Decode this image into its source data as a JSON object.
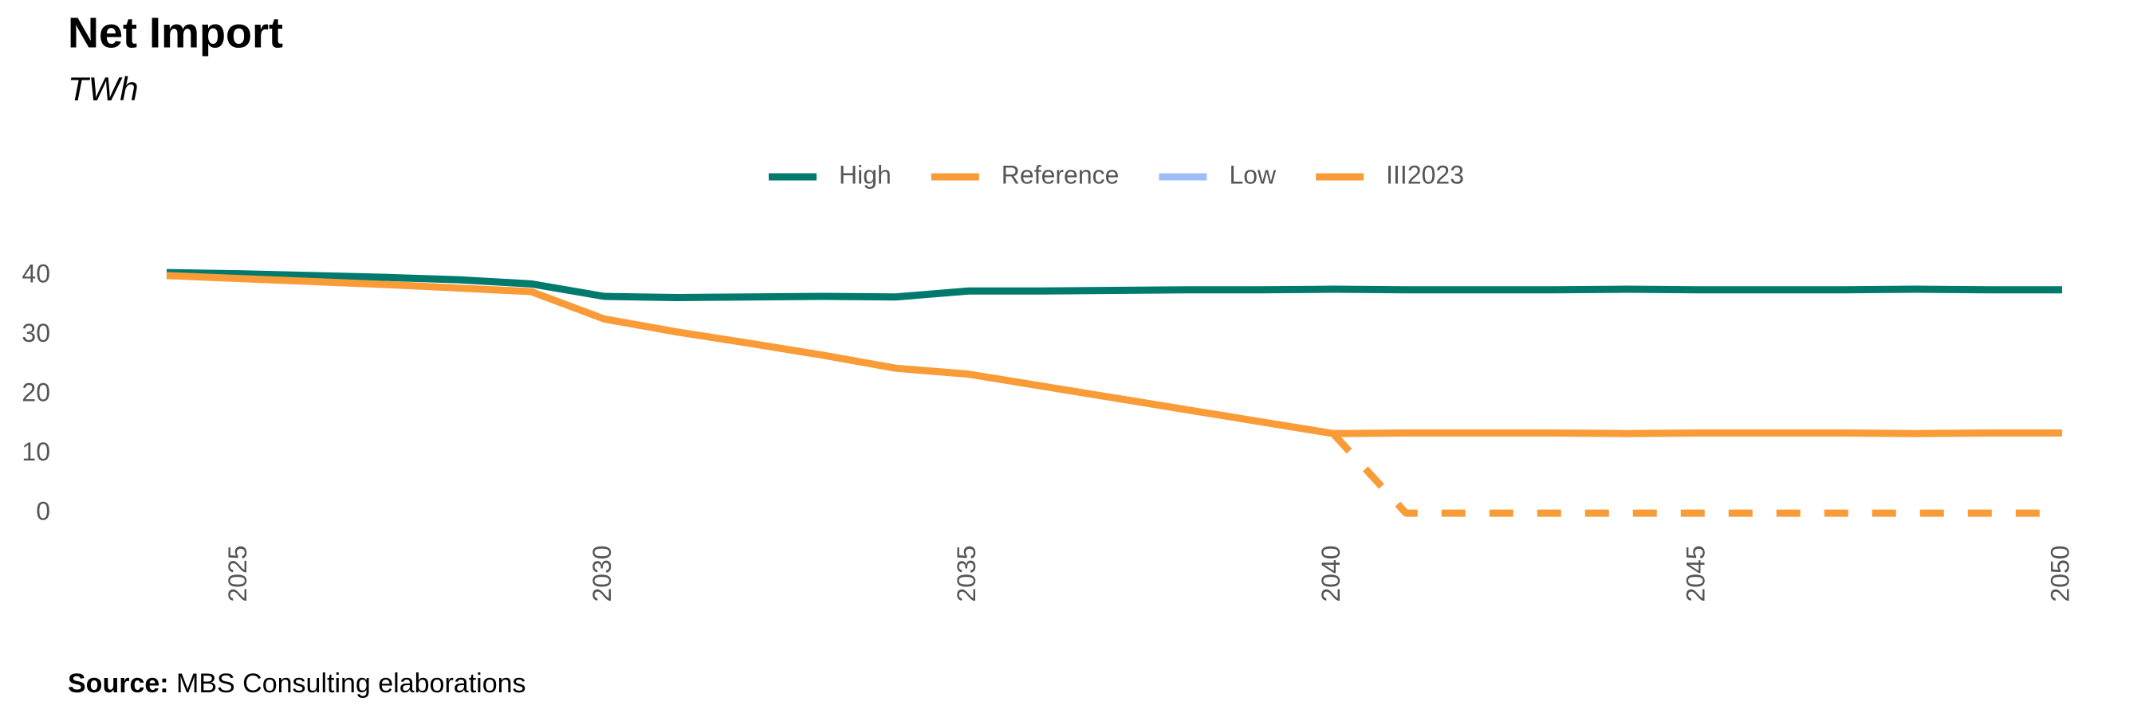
{
  "chart_data": {
    "type": "line",
    "title": "Net Import",
    "subtitle": "TWh",
    "source_label": "Source:",
    "source": "MBS Consulting elaborations",
    "x": [
      2024,
      2025,
      2026,
      2027,
      2028,
      2029,
      2030,
      2031,
      2032,
      2033,
      2034,
      2035,
      2036,
      2037,
      2038,
      2039,
      2040,
      2041,
      2042,
      2043,
      2044,
      2045,
      2046,
      2047,
      2048,
      2049,
      2050
    ],
    "xlim": [
      2024,
      2050
    ],
    "xticks": [
      2025,
      2030,
      2035,
      2040,
      2045,
      2050
    ],
    "ylim": [
      -2,
      42
    ],
    "yticks": [
      0,
      10,
      20,
      30,
      40
    ],
    "grid": false,
    "legend": "top",
    "series": [
      {
        "name": "High",
        "color": "#007a6c",
        "dashed": false,
        "values": [
          40.5,
          40.3,
          40.0,
          39.7,
          39.3,
          38.6,
          36.5,
          36.3,
          36.4,
          36.5,
          36.4,
          37.4,
          37.4,
          37.5,
          37.6,
          37.6,
          37.7,
          37.6,
          37.6,
          37.6,
          37.7,
          37.6,
          37.6,
          37.6,
          37.7,
          37.6,
          37.6
        ]
      },
      {
        "name": "Reference",
        "color": "#f99c38",
        "dashed": false,
        "values": [
          40.0,
          39.5,
          39.0,
          38.5,
          37.9,
          37.3,
          32.7,
          30.5,
          28.6,
          26.6,
          24.4,
          23.4,
          21.4,
          19.4,
          17.4,
          15.4,
          13.4,
          13.5,
          13.5,
          13.5,
          13.4,
          13.5,
          13.5,
          13.5,
          13.4,
          13.5,
          13.5
        ]
      },
      {
        "name": "Low",
        "color": "#9dbdf7",
        "dashed": false,
        "values": [
          null,
          null,
          null,
          null,
          null,
          null,
          null,
          null,
          null,
          null,
          null,
          null,
          null,
          null,
          null,
          null,
          null,
          null,
          null,
          null,
          null,
          null,
          null,
          null,
          null,
          null,
          null
        ]
      },
      {
        "name": "III2023",
        "color": "#f99c38",
        "dashed": true,
        "values": [
          null,
          null,
          null,
          null,
          null,
          null,
          null,
          null,
          null,
          null,
          null,
          null,
          null,
          null,
          null,
          null,
          13.4,
          0,
          0,
          0,
          0,
          0,
          0,
          0,
          0,
          0,
          0
        ]
      }
    ]
  }
}
